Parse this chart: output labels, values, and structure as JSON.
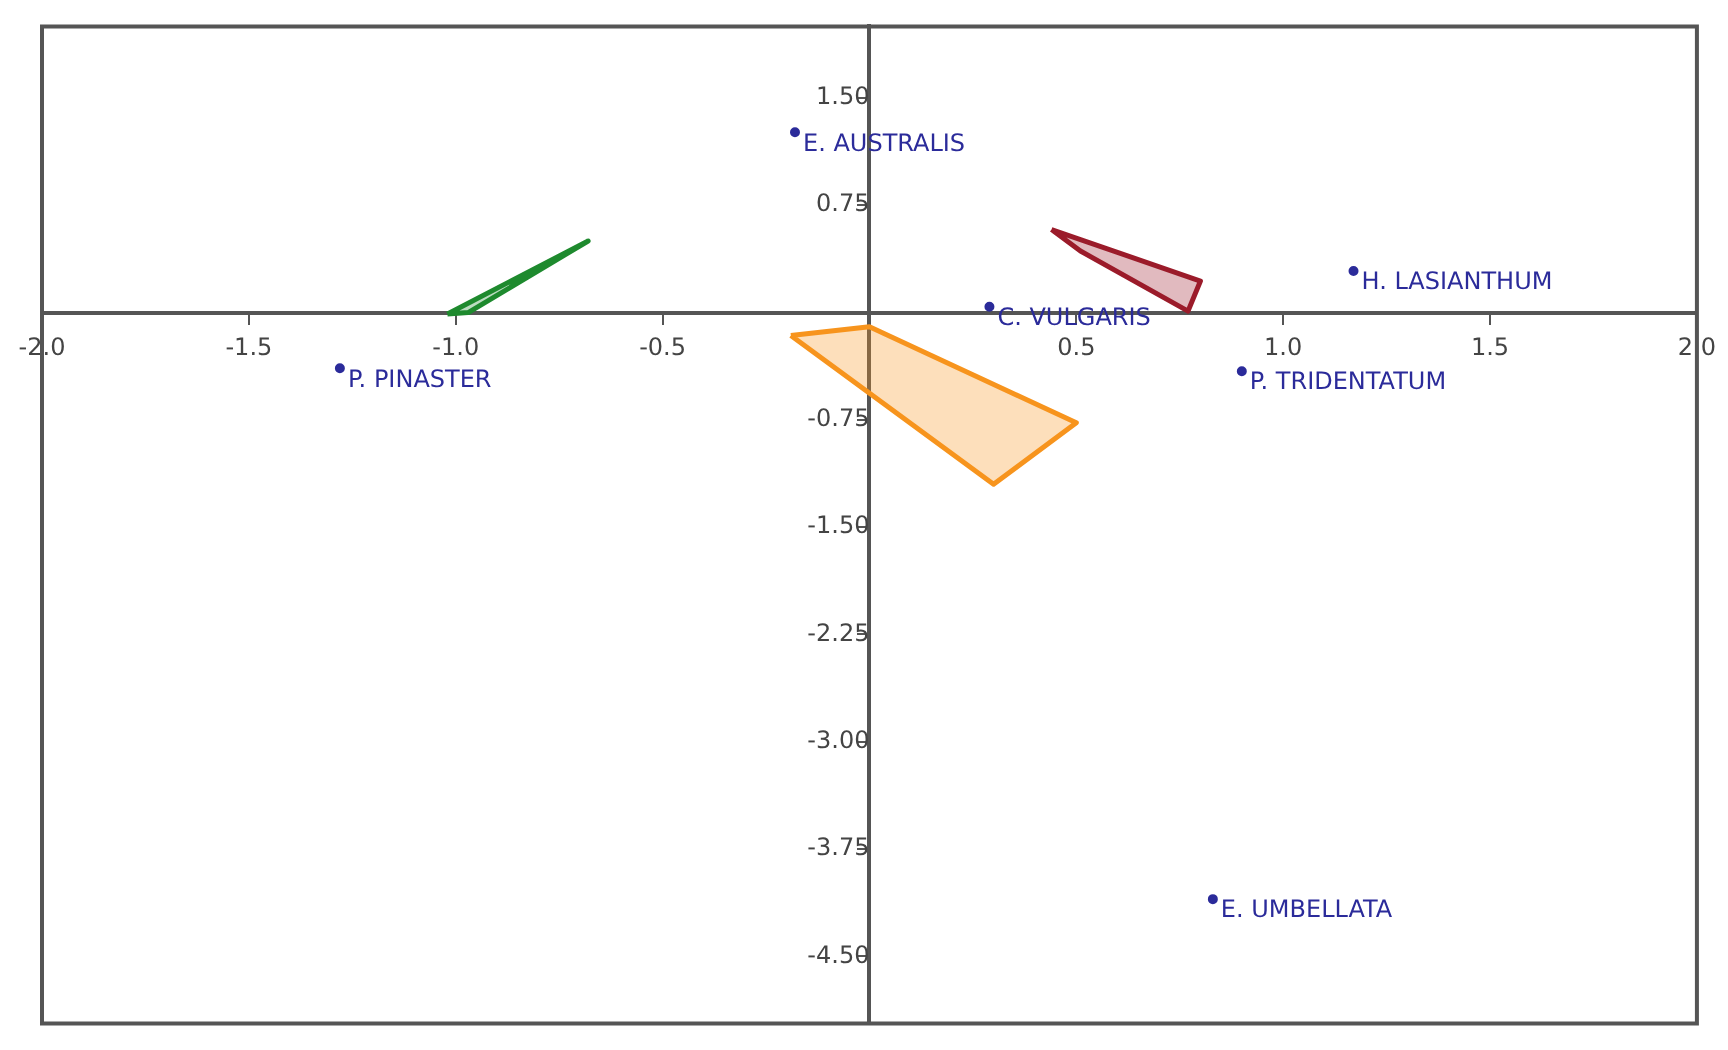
{
  "chart_data": {
    "type": "scatter",
    "xlim": [
      -2.0,
      2.0
    ],
    "ylim": [
      -4.97,
      2.0
    ],
    "xticks": [
      {
        "value": -2,
        "label": "-2.0"
      },
      {
        "value": -1.5,
        "label": "-1.5"
      },
      {
        "value": -1,
        "label": "-1.0"
      },
      {
        "value": -0.5,
        "label": "-0.5"
      },
      {
        "value": 0.5,
        "label": "0.5"
      },
      {
        "value": 1,
        "label": "1.0"
      },
      {
        "value": 1.5,
        "label": "1.5"
      },
      {
        "value": 2,
        "label": "2.0"
      }
    ],
    "yticks": [
      {
        "value": 1.5,
        "label": "1.50"
      },
      {
        "value": 0.75,
        "label": "0.75"
      },
      {
        "value": -0.75,
        "label": "-0.75"
      },
      {
        "value": -1.5,
        "label": "-1.50"
      },
      {
        "value": -2.25,
        "label": "-2.25"
      },
      {
        "value": -3,
        "label": "-3.00"
      },
      {
        "value": -3.75,
        "label": "-3.75"
      },
      {
        "value": -4.5,
        "label": "-4.50"
      }
    ],
    "grid": false,
    "legend": false,
    "series": [
      {
        "color": "#2b2b9a",
        "x": [
          -0.18,
          1.17,
          0.29,
          0.9,
          -1.28,
          0.83
        ],
        "values": [
          1.26,
          0.29,
          0.04,
          -0.41,
          -0.39,
          -4.1
        ]
      },
      {
        "type": "area",
        "color": "#1e8a2e",
        "x": [
          -1.02,
          -0.68,
          -0.97,
          -1.02
        ],
        "values": [
          -0.01,
          0.5,
          0.0,
          -0.01
        ]
      },
      {
        "type": "area",
        "color": "#9b1b2a",
        "x": [
          0.44,
          0.8,
          0.77,
          0.51,
          0.44
        ],
        "values": [
          0.58,
          0.22,
          0.01,
          0.43,
          0.58
        ]
      },
      {
        "type": "area",
        "color": "#f7941d",
        "x": [
          -0.19,
          0.0,
          0.5,
          0.3,
          -0.19
        ],
        "values": [
          -0.16,
          -0.1,
          -0.77,
          -1.2,
          -0.16
        ]
      }
    ],
    "annotations": [
      {
        "text": "E. AUSTRALIS",
        "x": -0.18,
        "y": 1.26
      },
      {
        "text": "H. LASIANTHUM",
        "x": 1.17,
        "y": 0.29
      },
      {
        "text": "C. VULGARIS",
        "x": 0.29,
        "y": 0.04
      },
      {
        "text": "P. TRIDENTATUM",
        "x": 0.9,
        "y": -0.41
      },
      {
        "text": "P. PINASTER",
        "x": -1.28,
        "y": -0.39
      },
      {
        "text": "E. UMBELLATA",
        "x": 0.83,
        "y": -4.1
      }
    ]
  }
}
